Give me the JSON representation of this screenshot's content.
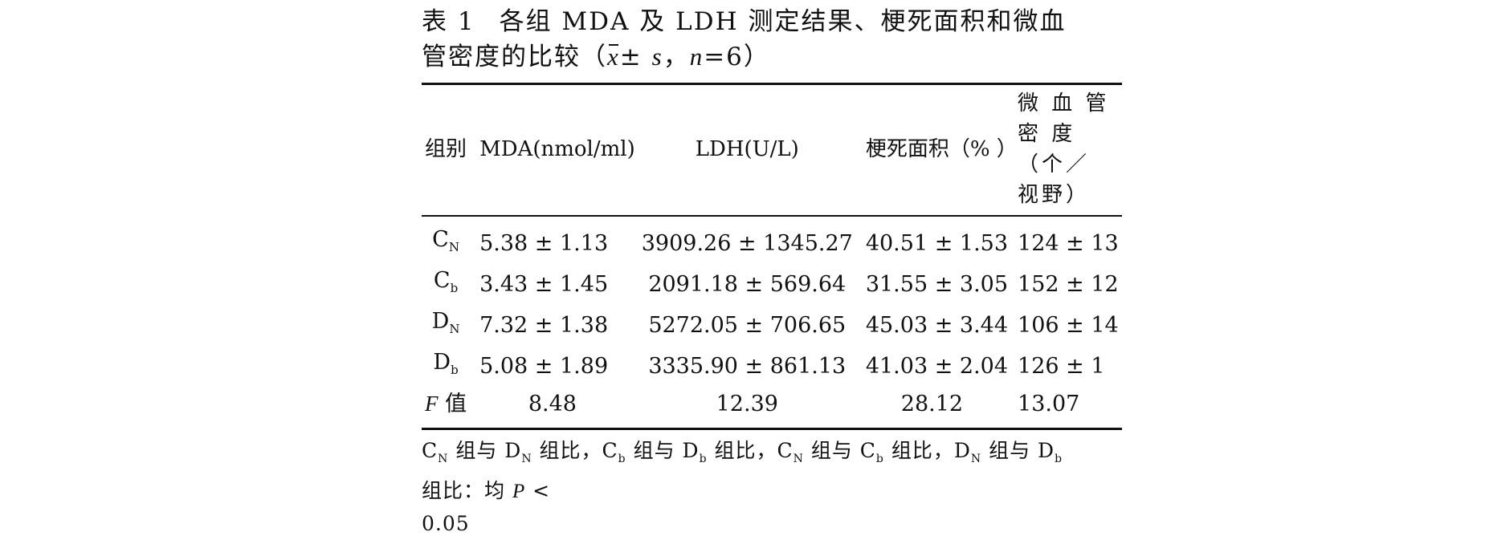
{
  "caption": {
    "label": "表 1",
    "title": "各组 MDA 及 LDH 测定结果、梗死面积和微血管密度的比较",
    "stats_open": "（",
    "mean_symbol": "x",
    "pm": "± ",
    "sd_symbol": "s",
    "sep": "，",
    "n_symbol": "n",
    "n_value": "=6",
    "stats_close": "）"
  },
  "table": {
    "headers": [
      "组别",
      "MDA(nmol/ml)",
      "LDH(U/L)",
      "梗死面积（% ）",
      "微 血 管 密 度",
      "（个／ 视野）"
    ],
    "rows": [
      {
        "group_main": "C",
        "group_sub": "N",
        "mda": "5.38 ± 1.13",
        "ldh": "3909.26 ± 1345.27",
        "infarct": "40.51 ± 1.53",
        "mvd": "124 ± 13"
      },
      {
        "group_main": "C",
        "group_sub": "b",
        "mda": "3.43 ± 1.45",
        "ldh": "2091.18 ± 569.64",
        "infarct": "31.55 ± 3.05",
        "mvd": "152 ± 12"
      },
      {
        "group_main": "D",
        "group_sub": "N",
        "mda": "7.32 ± 1.38",
        "ldh": "5272.05 ± 706.65",
        "infarct": "45.03 ± 3.44",
        "mvd": "106 ± 14"
      },
      {
        "group_main": "D",
        "group_sub": "b",
        "mda": "5.08 ± 1.89",
        "ldh": "3335.90 ± 861.13",
        "infarct": "41.03 ± 2.04",
        "mvd": "126 ± 1"
      }
    ],
    "f_row": {
      "label_italic": "F",
      "label_rest": " 值",
      "mda": "8.48",
      "ldh": "12.39",
      "infarct": "28.12",
      "mvd": "13.07"
    }
  },
  "footnote": {
    "t1": "C",
    "s1": "N",
    "t2": " 组与 D",
    "s2": "N",
    "t3": " 组比，C",
    "s3": "b",
    "t4": " 组与 D",
    "s4": "b",
    "t5": " 组比，C",
    "s5": "N",
    "t6": " 组与 C",
    "s6": "b",
    "t7": " 组比，D",
    "s7": "N",
    "t8": " 组与 D",
    "s8": "b",
    "t9": " 组比：均 ",
    "p_symbol": "P",
    "t10": " < ",
    "t11": "0.05"
  }
}
